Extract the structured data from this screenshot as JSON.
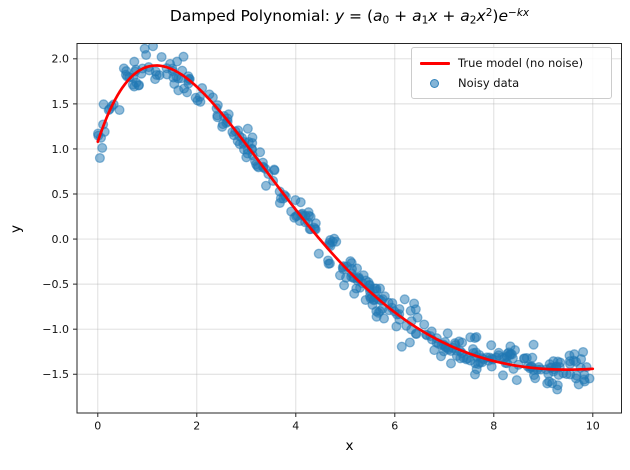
{
  "figure": {
    "background": "#ffffff"
  },
  "chart_data": {
    "type": "scatter",
    "title": "Damped Polynomial: y = (a₀ + a₁x + a₂x²)e^(−kx)",
    "title_segments": [
      {
        "t": "Damped Polynomial: "
      },
      {
        "t": "y",
        "i": true
      },
      {
        "t": " = ("
      },
      {
        "t": "a",
        "i": true
      },
      {
        "t": "0",
        "sub": true
      },
      {
        "t": " + "
      },
      {
        "t": "a",
        "i": true
      },
      {
        "t": "1",
        "sub": true
      },
      {
        "t": "x",
        "i": true
      },
      {
        "t": " + "
      },
      {
        "t": "a",
        "i": true
      },
      {
        "t": "2",
        "sub": true
      },
      {
        "t": "x",
        "i": true
      },
      {
        "t": "2",
        "sup": true
      },
      {
        "t": ")"
      },
      {
        "t": "e",
        "i": true
      },
      {
        "t": "−kx",
        "sup": true,
        "i": true
      }
    ],
    "xlabel": "x",
    "ylabel": "y",
    "xlim": [
      -0.42,
      10.58
    ],
    "ylim": [
      -1.93,
      2.17
    ],
    "grid": true,
    "grid_color": "#b1b1b1",
    "grid_alpha": 0.45,
    "spine_color": "#262626",
    "tick_label_color": "#111111",
    "x_ticks": {
      "values": [
        0,
        2,
        4,
        6,
        8,
        10
      ],
      "labels": [
        "0",
        "2",
        "4",
        "6",
        "8",
        "10"
      ]
    },
    "y_ticks": {
      "values": [
        2.0,
        1.5,
        1.0,
        0.5,
        0.0,
        -0.5,
        -1.0,
        -1.5
      ],
      "labels": [
        "2.0",
        "1.5",
        "1.0",
        "0.5",
        "0.0",
        "−0.5",
        "−1.0",
        "−1.5"
      ]
    },
    "legend": {
      "position": "upper right",
      "border_color": "#cccccc",
      "background": "rgba(255,255,255,0.85)"
    },
    "series": [
      {
        "name": "True model (no noise)",
        "type": "line",
        "color": "#ff0000",
        "linewidth": 2.7,
        "model": "y = (a0 + a1*x + a2*x^2) * exp(-k*x)",
        "params": {
          "a0": 1.08,
          "a1": 2.0,
          "a2": -0.5,
          "k": 0.3
        },
        "x_range": [
          0,
          10
        ],
        "points": [
          [
            0,
            1.08
          ],
          [
            0.5,
            1.683
          ],
          [
            1,
            1.911
          ],
          [
            1.5,
            1.884
          ],
          [
            2,
            1.69
          ],
          [
            2.5,
            1.396
          ],
          [
            3,
            1.049
          ],
          [
            3.5,
            0.684
          ],
          [
            4,
            0.325
          ],
          [
            4.5,
            -0.012
          ],
          [
            5,
            -0.317
          ],
          [
            5.5,
            -0.585
          ],
          [
            6,
            -0.813
          ],
          [
            6.5,
            -1.002
          ],
          [
            7,
            -1.154
          ],
          [
            7.5,
            -1.27
          ],
          [
            8,
            -1.354
          ],
          [
            8.5,
            -1.409
          ],
          [
            9,
            -1.44
          ],
          [
            9.5,
            -1.449
          ],
          [
            10,
            -1.44
          ]
        ]
      },
      {
        "name": "Noisy data",
        "type": "scatter",
        "color": "#1f77b4",
        "alpha": 0.5,
        "marker": "circle",
        "marker_radius_px": 4.4,
        "n_points": 360,
        "x_range": [
          0,
          10
        ],
        "noise_sigma": 0.1,
        "seed": 7,
        "generation": "y = true_model(x) + N(0, sigma)"
      }
    ]
  }
}
